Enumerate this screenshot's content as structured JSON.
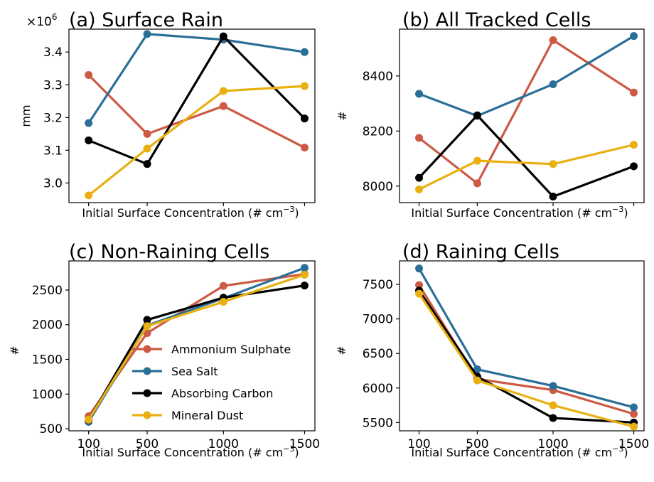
{
  "colors": {
    "Ammonium Sulphate": "#cc5a44",
    "Sea Salt": "#2a6f97",
    "Absorbing Carbon": "#000000",
    "Mineral Dust": "#e8b010"
  },
  "legend": [
    "Ammonium Sulphate",
    "Sea Salt",
    "Absorbing Carbon",
    "Mineral Dust"
  ],
  "chart_data": [
    {
      "type": "line",
      "title": "(a) Surface Rain",
      "ylabel": "mm",
      "xlabel": "Initial Surface Concentration (# cm",
      "xlabel_sup": "−3",
      "xlabel_end": ")",
      "scale_note": "×10",
      "scale_exp": "6",
      "x": [
        100,
        500,
        1000,
        1500
      ],
      "show_xticks": false,
      "ylim": [
        2.94,
        3.47
      ],
      "yticks": [
        3.0,
        3.1,
        3.2,
        3.3,
        3.4
      ],
      "ytick_labels": [
        "3.0",
        "3.1",
        "3.2",
        "3.3",
        "3.4"
      ],
      "series": [
        {
          "name": "Ammonium Sulphate",
          "values": [
            3.33,
            3.15,
            3.235,
            3.108
          ]
        },
        {
          "name": "Sea Salt",
          "values": [
            3.183,
            3.455,
            3.438,
            3.4
          ]
        },
        {
          "name": "Absorbing Carbon",
          "values": [
            3.13,
            3.058,
            3.448,
            3.197
          ]
        },
        {
          "name": "Mineral Dust",
          "values": [
            2.962,
            3.105,
            3.281,
            3.296
          ]
        }
      ]
    },
    {
      "type": "line",
      "title": "(b) All Tracked Cells",
      "ylabel": "#",
      "xlabel": "Initial Surface Concentration (# cm",
      "xlabel_sup": "−3",
      "xlabel_end": ")",
      "x": [
        100,
        500,
        1000,
        1500
      ],
      "show_xticks": false,
      "ylim": [
        7940,
        8570
      ],
      "yticks": [
        8000,
        8200,
        8400
      ],
      "ytick_labels": [
        "8000",
        "8200",
        "8400"
      ],
      "series": [
        {
          "name": "Ammonium Sulphate",
          "values": [
            8175,
            8010,
            8530,
            8340
          ]
        },
        {
          "name": "Sea Salt",
          "values": [
            8335,
            8255,
            8370,
            8545
          ]
        },
        {
          "name": "Absorbing Carbon",
          "values": [
            8030,
            8257,
            7962,
            8072
          ]
        },
        {
          "name": "Mineral Dust",
          "values": [
            7988,
            8092,
            8080,
            8150
          ]
        }
      ]
    },
    {
      "type": "line",
      "title": "(c) Non-Raining Cells",
      "ylabel": "#",
      "xlabel": "Initial Surface Concentration (# cm",
      "xlabel_sup": "−3",
      "xlabel_end": ")",
      "x": [
        100,
        500,
        1000,
        1500
      ],
      "show_xticks": true,
      "xtick_labels": [
        "100",
        "500",
        "1000",
        "1500"
      ],
      "ylim": [
        470,
        2920
      ],
      "yticks": [
        500,
        1000,
        1500,
        2000,
        2500
      ],
      "ytick_labels": [
        "500",
        "1000",
        "1500",
        "2000",
        "2500"
      ],
      "series": [
        {
          "name": "Ammonium Sulphate",
          "values": [
            680,
            1880,
            2560,
            2730
          ]
        },
        {
          "name": "Sea Salt",
          "values": [
            600,
            1990,
            2380,
            2820
          ]
        },
        {
          "name": "Absorbing Carbon",
          "values": [
            625,
            2070,
            2390,
            2565
          ]
        },
        {
          "name": "Mineral Dust",
          "values": [
            630,
            1980,
            2330,
            2720
          ]
        }
      ]
    },
    {
      "type": "line",
      "title": "(d) Raining Cells",
      "ylabel": "#",
      "xlabel": "Initial Surface Concentration (# cm",
      "xlabel_sup": "−3",
      "xlabel_end": ")",
      "x": [
        100,
        500,
        1000,
        1500
      ],
      "show_xticks": true,
      "xtick_labels": [
        "100",
        "500",
        "1000",
        "1500"
      ],
      "ylim": [
        5380,
        7840
      ],
      "yticks": [
        5500,
        6000,
        6500,
        7000,
        7500
      ],
      "ytick_labels": [
        "5500",
        "6000",
        "6500",
        "7000",
        "7500"
      ],
      "series": [
        {
          "name": "Ammonium Sulphate",
          "values": [
            7490,
            6130,
            5970,
            5625
          ]
        },
        {
          "name": "Sea Salt",
          "values": [
            7730,
            6270,
            6030,
            5720
          ]
        },
        {
          "name": "Absorbing Carbon",
          "values": [
            7410,
            6165,
            5565,
            5500
          ]
        },
        {
          "name": "Mineral Dust",
          "values": [
            7365,
            6110,
            5750,
            5440
          ]
        }
      ]
    }
  ]
}
